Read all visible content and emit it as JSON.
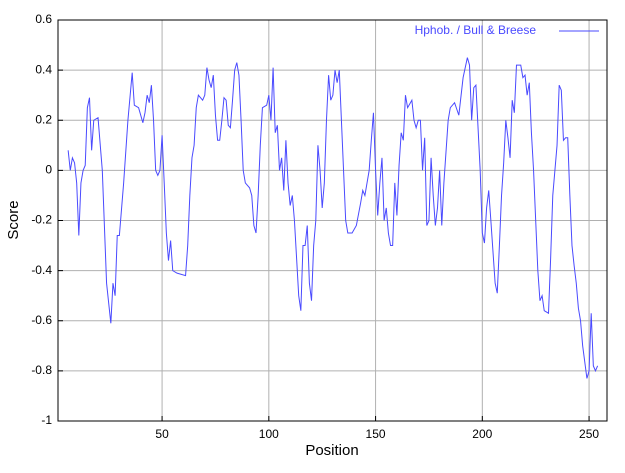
{
  "chart_data": {
    "type": "line",
    "xlabel": "Position",
    "ylabel": "Score",
    "xlim": [
      1.25,
      258.4
    ],
    "ylim": [
      -1,
      0.6
    ],
    "xticks": [
      50,
      100,
      150,
      200,
      250
    ],
    "yticks": [
      -1,
      -0.8,
      -0.6,
      -0.4,
      -0.2,
      0,
      0.2,
      0.4,
      0.6
    ],
    "grid": true,
    "legend": "upper right",
    "series": [
      {
        "name": "Hphob. / Bull & Breese",
        "color": "#4a4aff",
        "x": [
          6,
          7,
          8,
          9,
          10,
          11,
          12,
          13,
          14,
          15,
          16,
          17,
          18,
          20,
          22,
          24,
          26,
          27,
          28,
          29,
          30,
          32,
          34,
          36,
          37,
          39,
          41,
          42,
          43,
          44,
          45,
          46,
          47,
          48,
          49,
          50,
          51,
          52,
          53,
          54,
          55,
          57,
          61,
          62,
          63,
          64,
          65,
          66,
          67,
          69,
          70,
          71,
          72,
          73,
          74,
          75,
          76,
          77,
          78,
          79,
          80,
          81,
          82,
          83,
          84,
          85,
          86,
          87,
          88,
          89,
          91,
          92,
          93,
          94,
          95,
          96,
          97,
          99,
          100,
          101,
          102,
          103,
          104,
          105,
          106,
          107,
          108,
          109,
          110,
          111,
          112,
          113,
          114,
          115,
          116,
          117,
          118,
          119,
          120,
          121,
          122,
          123,
          124,
          125,
          126,
          127,
          128,
          129,
          130,
          131,
          132,
          133,
          134,
          135,
          136,
          137,
          139,
          141,
          143,
          144,
          145,
          146,
          147,
          148,
          149,
          150,
          151,
          152,
          153,
          154,
          155,
          156,
          157,
          158,
          159,
          160,
          161,
          162,
          163,
          164,
          165,
          167,
          168,
          169,
          170,
          171,
          172,
          173,
          174,
          175,
          176,
          177,
          178,
          179,
          180,
          181,
          182,
          184,
          185,
          187,
          189,
          191,
          193,
          194,
          195,
          196,
          197,
          199,
          200,
          201,
          202,
          203,
          204,
          206,
          207,
          208,
          209,
          210,
          211,
          212,
          213,
          214,
          215,
          216,
          218,
          219,
          220,
          221,
          222,
          223,
          224,
          225,
          226,
          227,
          228,
          229,
          231,
          232,
          233,
          235,
          236,
          237,
          238,
          239,
          240,
          241,
          242,
          243,
          244,
          245,
          246,
          247,
          249,
          250,
          251,
          252,
          253,
          254
        ],
        "values": [
          0.08,
          0.0,
          0.05,
          0.03,
          -0.05,
          -0.26,
          -0.05,
          0.0,
          0.02,
          0.25,
          0.29,
          0.08,
          0.2,
          0.21,
          0.0,
          -0.45,
          -0.61,
          -0.45,
          -0.5,
          -0.26,
          -0.26,
          -0.05,
          0.2,
          0.39,
          0.26,
          0.25,
          0.19,
          0.23,
          0.3,
          0.27,
          0.34,
          0.2,
          0.0,
          -0.02,
          0.0,
          0.14,
          -0.05,
          -0.25,
          -0.36,
          -0.28,
          -0.4,
          -0.41,
          -0.42,
          -0.3,
          -0.1,
          0.05,
          0.1,
          0.25,
          0.3,
          0.28,
          0.3,
          0.41,
          0.36,
          0.33,
          0.38,
          0.22,
          0.12,
          0.12,
          0.2,
          0.29,
          0.28,
          0.18,
          0.17,
          0.28,
          0.4,
          0.43,
          0.38,
          0.2,
          0.0,
          -0.05,
          -0.07,
          -0.1,
          -0.22,
          -0.25,
          -0.1,
          0.1,
          0.25,
          0.26,
          0.3,
          0.2,
          0.41,
          0.15,
          0.18,
          0.0,
          0.05,
          -0.08,
          0.12,
          -0.05,
          -0.14,
          -0.1,
          -0.2,
          -0.35,
          -0.5,
          -0.56,
          -0.3,
          -0.3,
          -0.22,
          -0.45,
          -0.52,
          -0.3,
          -0.2,
          0.1,
          0.0,
          -0.15,
          -0.05,
          0.2,
          0.38,
          0.28,
          0.3,
          0.4,
          0.35,
          0.4,
          0.2,
          0.0,
          -0.2,
          -0.25,
          -0.25,
          -0.22,
          -0.13,
          -0.08,
          -0.1,
          -0.05,
          0.0,
          0.12,
          0.23,
          0.0,
          -0.18,
          -0.05,
          0.05,
          -0.2,
          -0.15,
          -0.25,
          -0.3,
          -0.3,
          -0.05,
          -0.18,
          0.02,
          0.15,
          0.12,
          0.3,
          0.25,
          0.28,
          0.2,
          0.17,
          0.2,
          0.2,
          0.0,
          0.13,
          -0.22,
          -0.2,
          0.05,
          -0.1,
          -0.22,
          -0.15,
          0.0,
          -0.22,
          -0.05,
          0.2,
          0.25,
          0.27,
          0.22,
          0.37,
          0.45,
          0.42,
          0.2,
          0.33,
          0.34,
          0.0,
          -0.25,
          -0.29,
          -0.15,
          -0.08,
          -0.2,
          -0.45,
          -0.49,
          -0.3,
          -0.1,
          0.03,
          0.2,
          0.13,
          0.05,
          0.28,
          0.23,
          0.42,
          0.42,
          0.37,
          0.38,
          0.3,
          0.35,
          0.15,
          0.0,
          -0.2,
          -0.4,
          -0.52,
          -0.5,
          -0.56,
          -0.57,
          -0.35,
          -0.1,
          0.1,
          0.34,
          0.32,
          0.12,
          0.13,
          0.13,
          -0.1,
          -0.3,
          -0.38,
          -0.45,
          -0.55,
          -0.6,
          -0.7,
          -0.83,
          -0.8,
          -0.57,
          -0.78,
          -0.8,
          -0.78
        ]
      }
    ]
  }
}
